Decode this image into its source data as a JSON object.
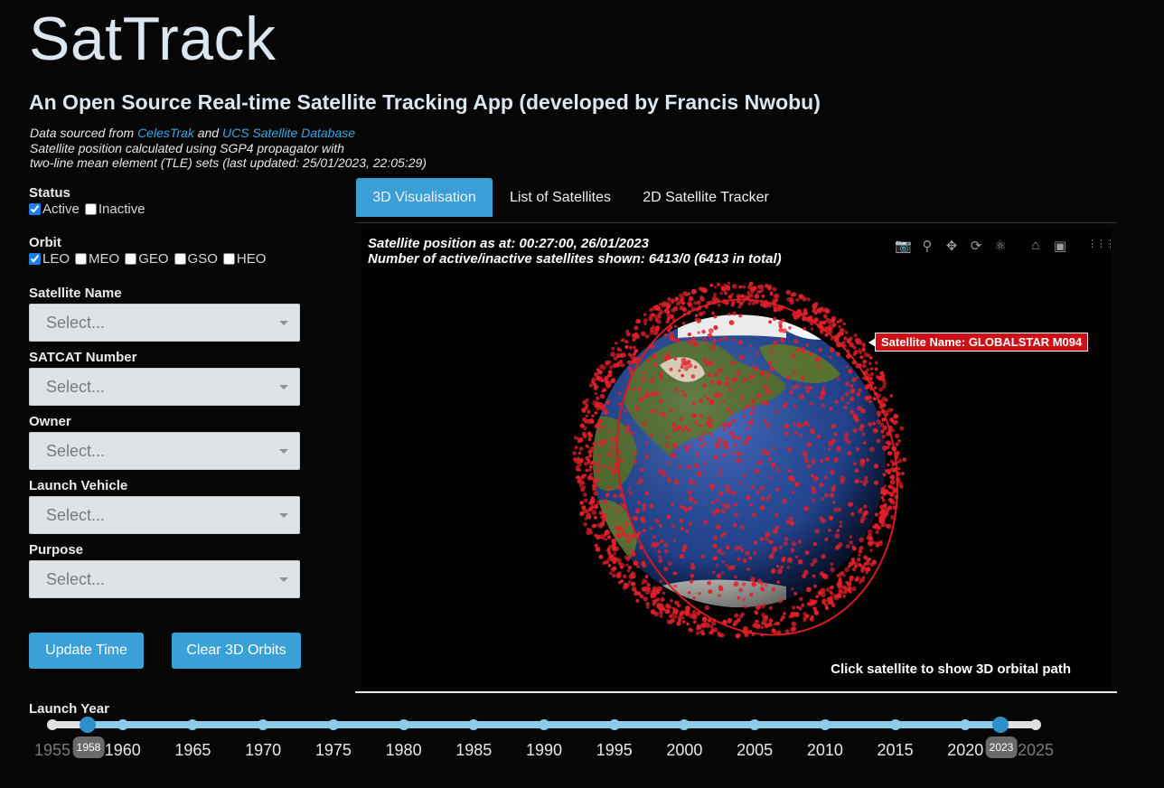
{
  "header": {
    "title": "SatTrack",
    "subtitle": "An Open Source Real-time Satellite Tracking App (developed by Francis Nwobu)",
    "data_line_prefix": "Data sourced from ",
    "link_celestrak": "CelesTrak",
    "data_line_and": " and ",
    "link_ucs": "UCS Satellite Database",
    "sgp4_line": "Satellite position calculated using SGP4 propagator with",
    "tle_line": "two-line mean element (TLE) sets (last updated: 25/01/2023, 22:05:29)"
  },
  "filters": {
    "status": {
      "label": "Status",
      "options": [
        {
          "label": "Active",
          "checked": true
        },
        {
          "label": "Inactive",
          "checked": false
        }
      ]
    },
    "orbit": {
      "label": "Orbit",
      "options": [
        {
          "label": "LEO",
          "checked": true
        },
        {
          "label": "MEO",
          "checked": false
        },
        {
          "label": "GEO",
          "checked": false
        },
        {
          "label": "GSO",
          "checked": false
        },
        {
          "label": "HEO",
          "checked": false
        }
      ]
    },
    "dropdowns": [
      {
        "label": "Satellite Name",
        "placeholder": "Select..."
      },
      {
        "label": "SATCAT Number",
        "placeholder": "Select..."
      },
      {
        "label": "Owner",
        "placeholder": "Select..."
      },
      {
        "label": "Launch Vehicle",
        "placeholder": "Select..."
      },
      {
        "label": "Purpose",
        "placeholder": "Select..."
      }
    ]
  },
  "buttons": {
    "update_time": "Update Time",
    "clear_orbits": "Clear 3D Orbits"
  },
  "tabs": [
    {
      "label": "3D Visualisation",
      "active": true
    },
    {
      "label": "List of Satellites",
      "active": false
    },
    {
      "label": "2D Satellite Tracker",
      "active": false
    }
  ],
  "plot": {
    "position_line": "Satellite position as at: 00:27:00, 26/01/2023",
    "count_line": "Number of active/inactive satellites shown: 6413/0 (6413 in total)",
    "hover_label": "Satellite Name: GLOBALSTAR M094",
    "footer": "Click satellite to show 3D orbital path",
    "modebar_icons": [
      "camera-icon",
      "zoom-icon",
      "pan-icon",
      "orbit-rotate-icon",
      "turntable-icon",
      "home-icon",
      "reset-camera-icon",
      "plotly-logo-icon"
    ],
    "colors": {
      "satellite": "#e0202a",
      "ocean": "#2a4a9a",
      "land": "#4c6b30"
    }
  },
  "slider": {
    "label": "Launch Year",
    "min": 1955,
    "max": 2025,
    "value_start": 1958,
    "value_end": 2023,
    "marks": [
      "1955",
      "1960",
      "1965",
      "1970",
      "1975",
      "1980",
      "1985",
      "1990",
      "1995",
      "2000",
      "2005",
      "2010",
      "2015",
      "2020",
      "2025"
    ],
    "tooltip_start": "1958",
    "tooltip_end": "2023"
  }
}
